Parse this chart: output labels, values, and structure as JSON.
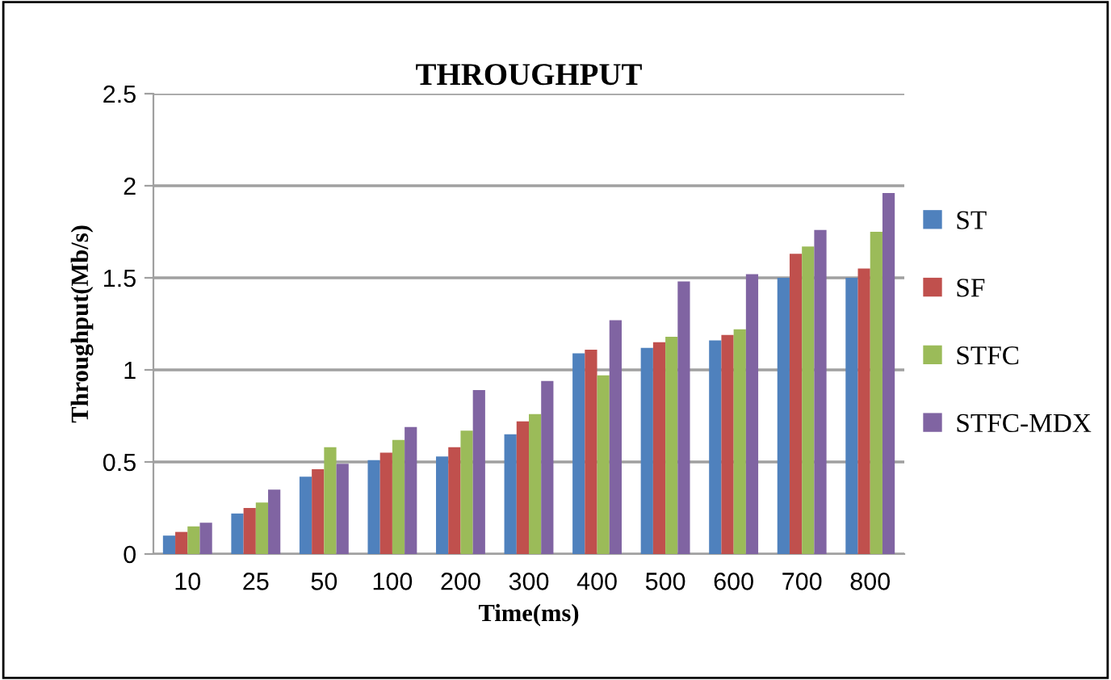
{
  "chart_data": {
    "type": "bar",
    "title": "THROUGHPUT",
    "xlabel": "Time(ms)",
    "ylabel": "Throughput(Mb/s)",
    "categories": [
      "10",
      "25",
      "50",
      "100",
      "200",
      "300",
      "400",
      "500",
      "600",
      "700",
      "800"
    ],
    "series": [
      {
        "name": "ST",
        "color": "#4f81bd",
        "values": [
          0.1,
          0.22,
          0.42,
          0.51,
          0.53,
          0.65,
          1.09,
          1.12,
          1.16,
          1.5,
          1.5
        ]
      },
      {
        "name": "SF",
        "color": "#c0504d",
        "values": [
          0.12,
          0.25,
          0.46,
          0.55,
          0.58,
          0.72,
          1.11,
          1.15,
          1.19,
          1.63,
          1.55
        ]
      },
      {
        "name": "STFC",
        "color": "#9bbb59",
        "values": [
          0.15,
          0.28,
          0.58,
          0.62,
          0.67,
          0.76,
          0.97,
          1.18,
          1.22,
          1.67,
          1.75
        ]
      },
      {
        "name": "STFC-MDX",
        "color": "#8064a2",
        "values": [
          0.17,
          0.35,
          0.49,
          0.69,
          0.89,
          0.94,
          1.27,
          1.48,
          1.52,
          1.76,
          1.96
        ]
      }
    ],
    "ylim": [
      0,
      2.5
    ],
    "yticks": [
      0,
      {
        "value": 0.5,
        "label": "0.5"
      },
      1,
      {
        "value": 1.5,
        "label": "1.5"
      },
      2,
      {
        "value": 2.5,
        "label": "2.5"
      }
    ],
    "grid": "y",
    "legend": "right"
  }
}
